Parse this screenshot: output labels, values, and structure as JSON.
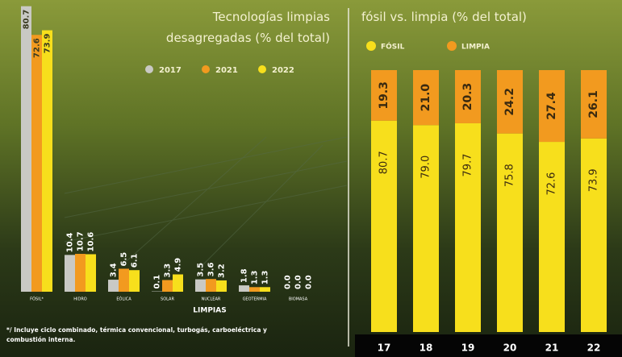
{
  "chart_data": [
    {
      "type": "bar",
      "title": "Tecnologías limpias desagregadas (% del total)",
      "categories": [
        "FÓSIL*",
        "HIDRO",
        "EÓLICA",
        "SOLAR",
        "NUCLEAR",
        "GEOTERMIA",
        "BIOMASA"
      ],
      "x_label": "LIMPIAS",
      "series": [
        {
          "name": "2017",
          "color": "#c9c9c4",
          "values": [
            80.7,
            10.4,
            3.4,
            0.1,
            3.5,
            1.8,
            0.0
          ],
          "value_labels": [
            "80.7",
            "10.4",
            "3.4",
            "0.1",
            "3.5",
            "1.8",
            "0.0"
          ]
        },
        {
          "name": "2021",
          "color": "#f29a1f",
          "values": [
            72.6,
            10.7,
            6.5,
            3.3,
            3.6,
            1.3,
            0.0
          ],
          "value_labels": [
            "72.6",
            "10.7",
            "6.5",
            "3.3",
            "3.6",
            "1.3",
            "0.0"
          ]
        },
        {
          "name": "2022",
          "color": "#f7df1c",
          "values": [
            73.9,
            10.6,
            6.1,
            4.9,
            3.2,
            1.3,
            0.0
          ],
          "value_labels": [
            "73.9",
            "10.6",
            "6.1",
            "4.9",
            "3.2",
            "1.3",
            "0.0"
          ]
        }
      ],
      "ylim": [
        0,
        82
      ],
      "footnote": "*/ Incluye ciclo combinado, térmica convencional, turbogás, carboeléctrica y combustión interna."
    },
    {
      "type": "stacked-bar",
      "title": "fósil vs. limpia (% del total)",
      "categories": [
        "17",
        "18",
        "19",
        "20",
        "21",
        "22"
      ],
      "series": [
        {
          "name": "FÓSIL",
          "color": "#f7df1c",
          "values": [
            80.7,
            79.0,
            79.7,
            75.8,
            72.6,
            73.9
          ],
          "value_labels": [
            "80.7",
            "79.0",
            "79.7",
            "75.8",
            "72.6",
            "73.9"
          ]
        },
        {
          "name": "LIMPIA",
          "color": "#f29a1f",
          "values": [
            19.3,
            21.0,
            20.3,
            24.2,
            27.4,
            26.1
          ],
          "value_labels": [
            "19.3",
            "21.0",
            "20.3",
            "24.2",
            "27.4",
            "26.1"
          ]
        }
      ],
      "ylim": [
        0,
        100
      ]
    }
  ]
}
